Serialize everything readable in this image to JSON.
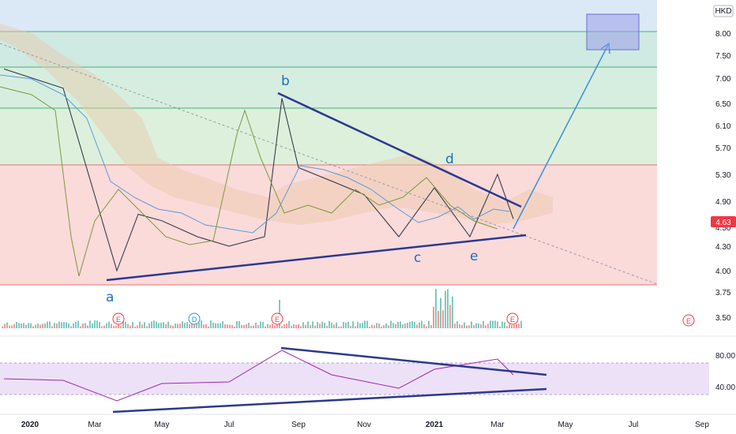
{
  "currency": "HKD",
  "last_price": "4.63",
  "colors": {
    "band_blue": "#dbe9f7",
    "band_teal": "#cfe9e3",
    "band_green": "#dcf0dc",
    "band_red": "#fbdada",
    "fib_line_green": "#4caf7a",
    "fib_line_red": "#e57373",
    "trendline": "#2b3990",
    "projection": "#3a8fd6",
    "target_box": "#7b7fe0",
    "price_badge": "#f23645",
    "rsi_line": "#9c27b0",
    "rsi_band": "#ede1f7"
  },
  "chart_data": [
    {
      "type": "line",
      "title": "",
      "price_axis_ticks": [
        "8.00",
        "7.50",
        "7.00",
        "6.50",
        "6.10",
        "5.70",
        "5.30",
        "4.90",
        "4.50",
        "4.30",
        "4.00",
        "3.75",
        "3.50"
      ],
      "time_axis_ticks": [
        "2020",
        "Mar",
        "May",
        "Jul",
        "Sep",
        "Nov",
        "2021",
        "Mar",
        "May",
        "Jul",
        "Sep"
      ],
      "series": [
        {
          "x": [
            "2020-01",
            "2020-02",
            "2020-03-20",
            "2020-04",
            "2020-05",
            "2020-06",
            "2020-07",
            "2020-08",
            "2020-08-25",
            "2020-09",
            "2020-10",
            "2020-11",
            "2020-12",
            "2021-01",
            "2021-02",
            "2021-03",
            "2021-03-20"
          ],
          "values": [
            7.2,
            6.8,
            4.0,
            4.7,
            4.6,
            4.4,
            4.3,
            4.4,
            6.6,
            5.4,
            5.2,
            5.0,
            4.4,
            5.1,
            4.4,
            5.3,
            4.63
          ]
        }
      ],
      "wave_labels": [
        "a",
        "b",
        "c",
        "d",
        "e"
      ],
      "event_markers": [
        "E",
        "D",
        "E",
        "E",
        "E"
      ],
      "fib_levels": [
        8.0,
        7.25,
        6.4,
        5.45
      ],
      "target_zone": [
        7.6,
        8.3
      ],
      "grid": false
    },
    {
      "type": "line",
      "title": "",
      "y_axis_ticks": [
        "80.00",
        "40.00"
      ],
      "ylim": [
        20,
        95
      ],
      "bands": [
        30,
        70
      ],
      "series": [
        {
          "x": [
            "2020-01",
            "2020-02",
            "2020-03-20",
            "2020-05",
            "2020-07",
            "2020-08-25",
            "2020-10",
            "2020-12",
            "2021-01",
            "2021-03",
            "2021-03-20"
          ],
          "values": [
            50,
            48,
            22,
            44,
            46,
            86,
            55,
            38,
            62,
            75,
            55
          ]
        }
      ]
    }
  ]
}
